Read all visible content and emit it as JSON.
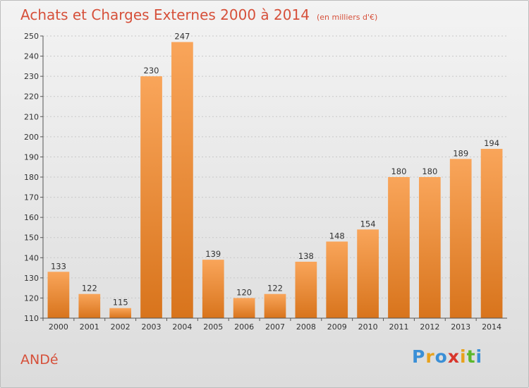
{
  "title": "Achats et Charges Externes 2000 à 2014",
  "subtitle": "(en milliers d'€)",
  "place": "ANDé",
  "logo": "Proxiti",
  "colors": {
    "bar_light": "#f9a55a",
    "bar_dark": "#d8741c",
    "title": "#d6503a"
  },
  "chart_data": {
    "type": "bar",
    "title": "Achats et Charges Externes 2000 à 2014",
    "subtitle": "(en milliers d'€)",
    "categories": [
      "2000",
      "2001",
      "2002",
      "2003",
      "2004",
      "2005",
      "2006",
      "2007",
      "2008",
      "2009",
      "2010",
      "2011",
      "2012",
      "2013",
      "2014"
    ],
    "values": [
      133,
      122,
      115,
      230,
      247,
      139,
      120,
      122,
      138,
      148,
      154,
      180,
      180,
      189,
      194
    ],
    "ylim": [
      110,
      250
    ],
    "yticks": [
      110,
      120,
      130,
      140,
      150,
      160,
      170,
      180,
      190,
      200,
      210,
      220,
      230,
      240,
      250
    ],
    "grid": true,
    "show_value_labels": true
  }
}
